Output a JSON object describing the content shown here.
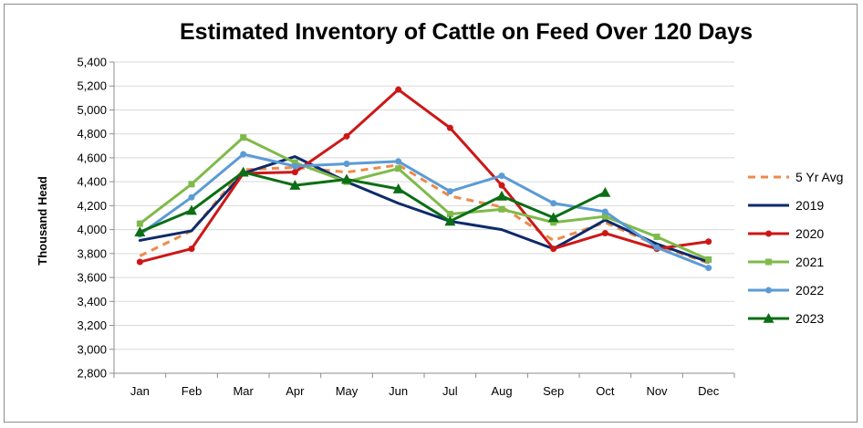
{
  "chart_data": {
    "type": "line",
    "title": "Estimated Inventory of Cattle on Feed Over 120 Days",
    "xlabel": "",
    "ylabel": "Thousand Head",
    "categories": [
      "Jan",
      "Feb",
      "Mar",
      "Apr",
      "May",
      "Jun",
      "Jul",
      "Aug",
      "Sep",
      "Oct",
      "Nov",
      "Dec"
    ],
    "ylim": [
      2800,
      5400
    ],
    "ytick_step": 200,
    "y_tick_labels": [
      "2,800",
      "3,000",
      "3,200",
      "3,400",
      "3,600",
      "3,800",
      "4,000",
      "4,200",
      "4,400",
      "4,600",
      "4,800",
      "5,000",
      "5,200",
      "5,400"
    ],
    "grid": true,
    "legend_position": "right",
    "series": [
      {
        "name": "5 Yr Avg",
        "color": "#ee8a4a",
        "style": "dashed",
        "marker": "none",
        "values": [
          3780,
          3990,
          4500,
          4520,
          4480,
          4540,
          4280,
          4190,
          3910,
          4060,
          3870,
          3720
        ]
      },
      {
        "name": "2019",
        "color": "#0d2a6b",
        "style": "solid",
        "marker": "none",
        "values": [
          3910,
          3990,
          4470,
          4610,
          4400,
          4220,
          4070,
          4000,
          3840,
          4080,
          3880,
          3730
        ]
      },
      {
        "name": "2020",
        "color": "#cc1717",
        "style": "solid",
        "marker": "circle",
        "values": [
          3730,
          3840,
          4470,
          4480,
          4780,
          5170,
          4850,
          4370,
          3840,
          3970,
          3840,
          3900
        ]
      },
      {
        "name": "2021",
        "color": "#7fba4a",
        "style": "solid",
        "marker": "square",
        "values": [
          4050,
          4380,
          4770,
          4560,
          4400,
          4510,
          4130,
          4170,
          4060,
          4110,
          3940,
          3750
        ]
      },
      {
        "name": "2022",
        "color": "#5b9bd5",
        "style": "solid",
        "marker": "circle",
        "values": [
          3960,
          4270,
          4630,
          4530,
          4550,
          4570,
          4320,
          4450,
          4220,
          4150,
          3850,
          3680
        ]
      },
      {
        "name": "2023",
        "color": "#0b6e14",
        "style": "solid",
        "marker": "triangle",
        "values": [
          3980,
          4160,
          4480,
          4370,
          4420,
          4340,
          4070,
          4280,
          4100,
          4310,
          null,
          null
        ]
      }
    ]
  }
}
